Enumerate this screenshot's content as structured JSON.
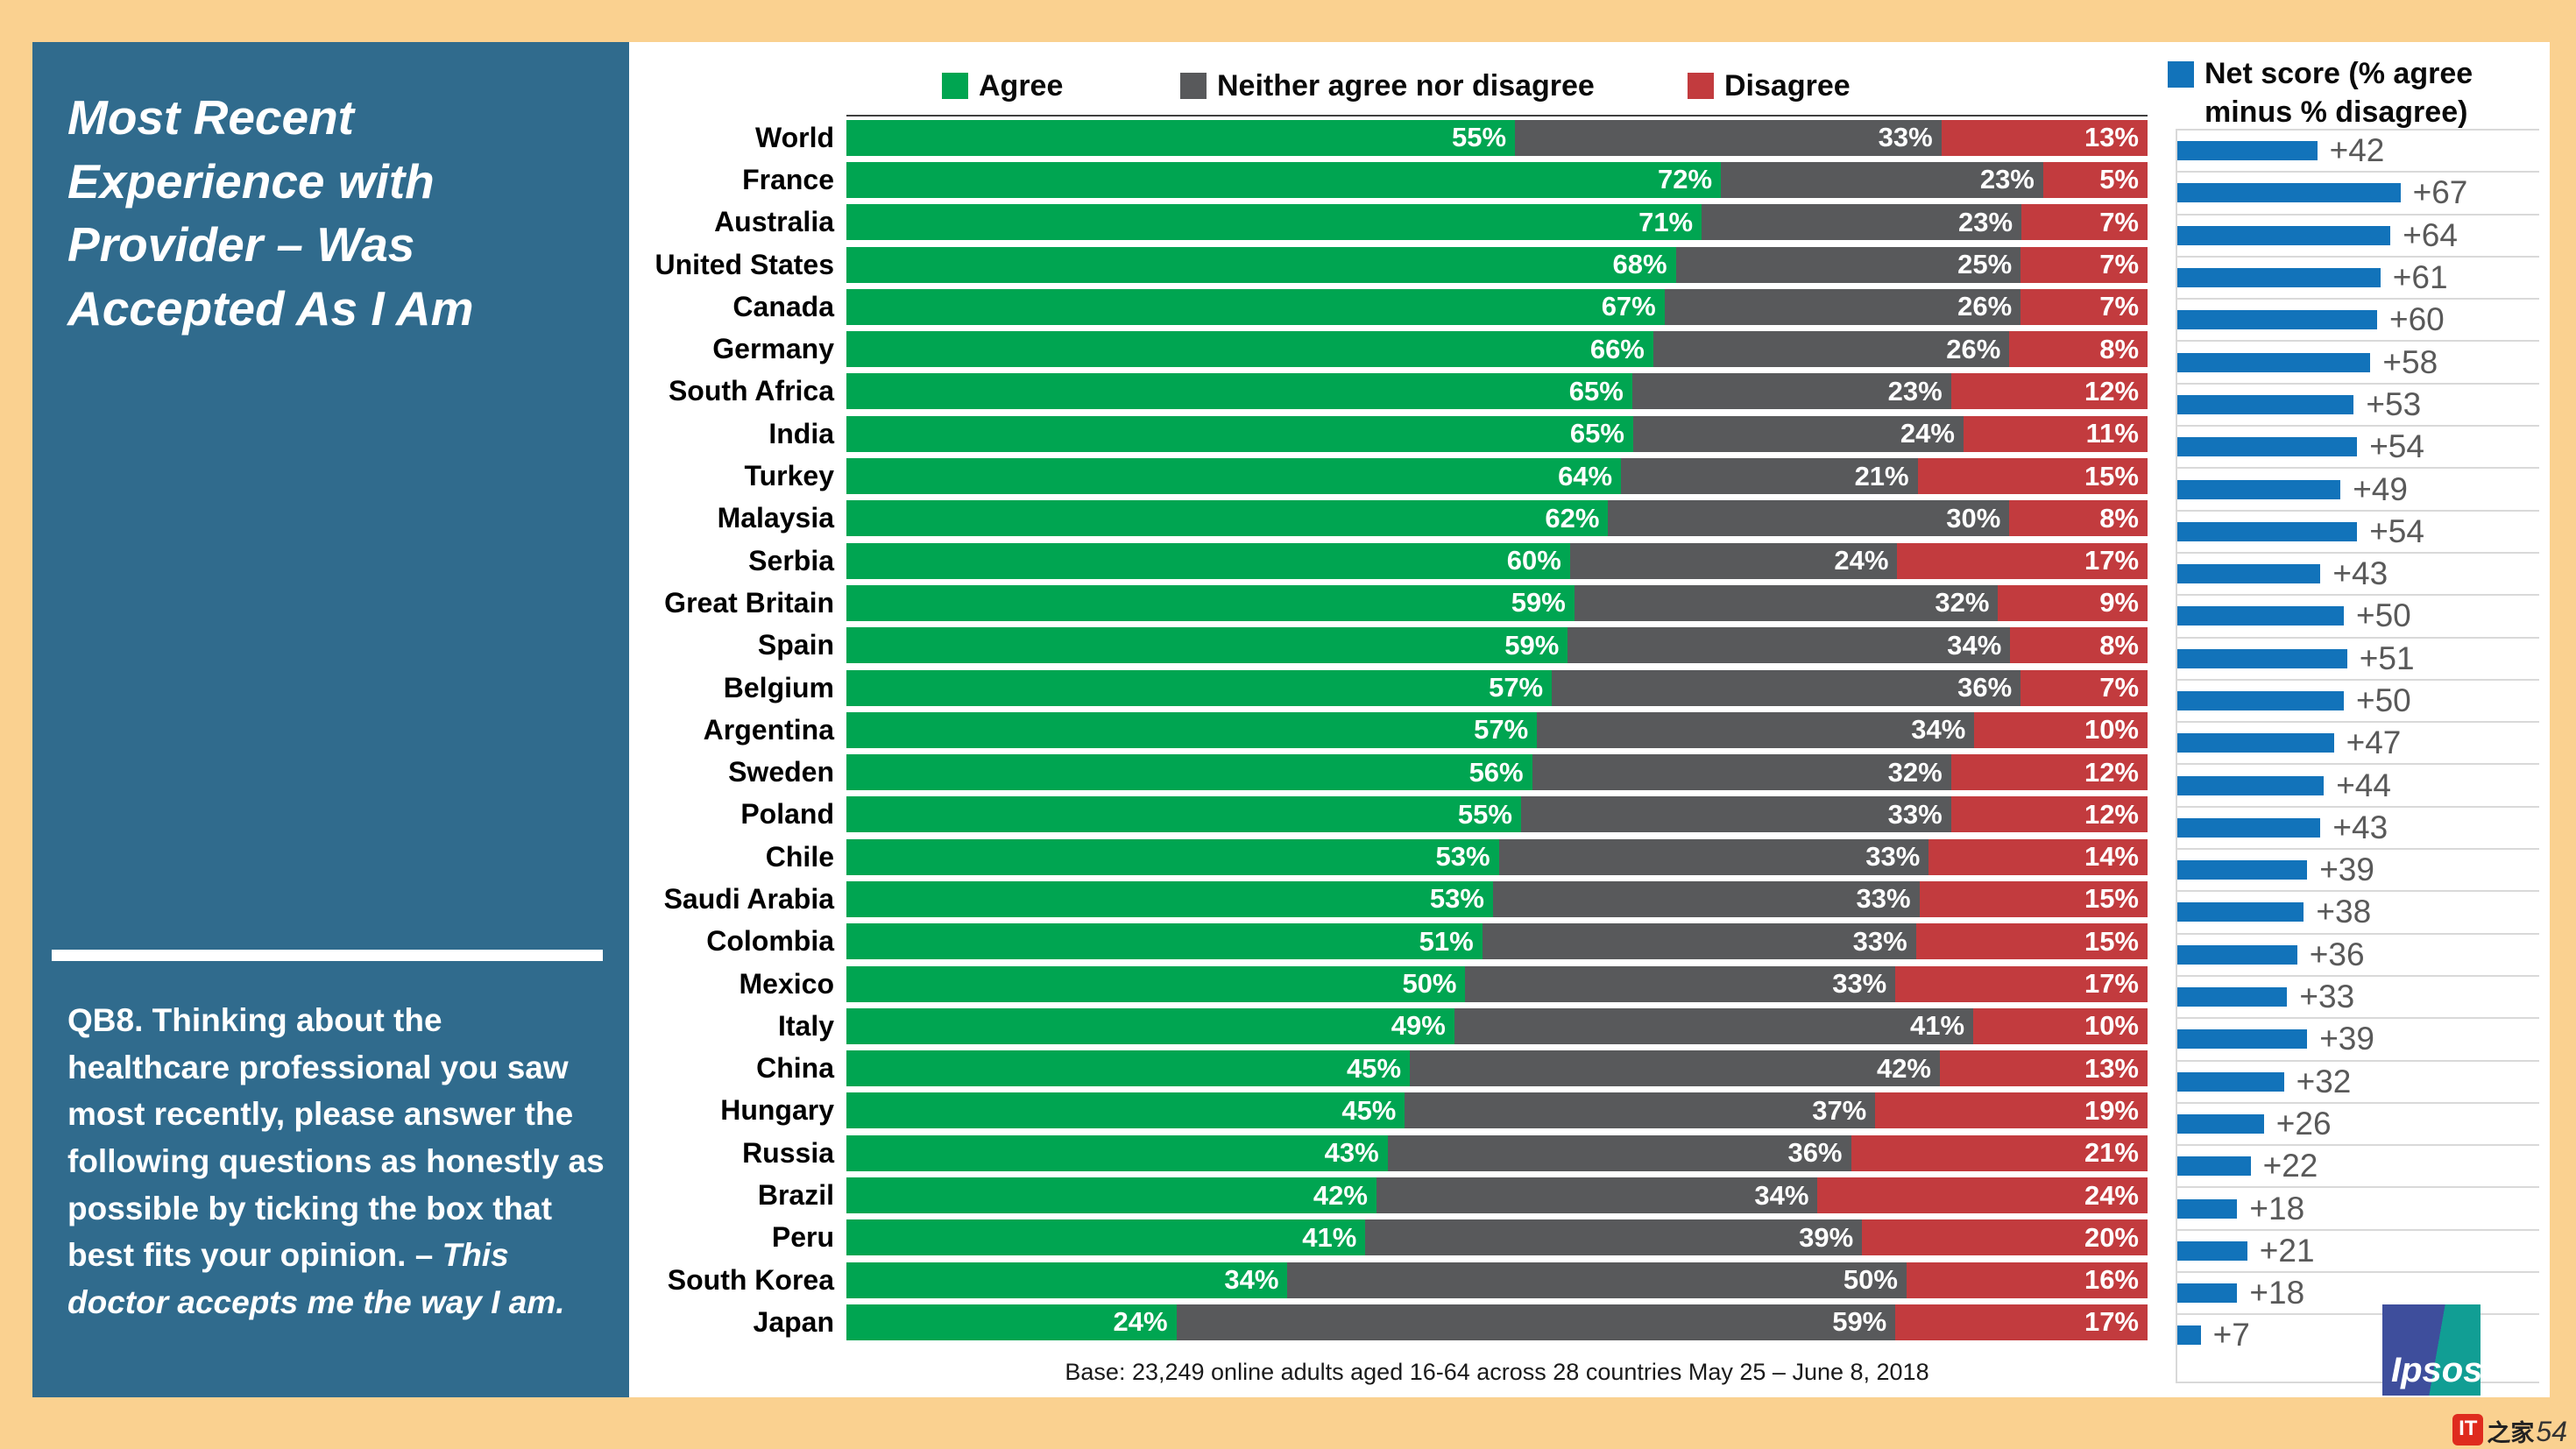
{
  "colors": {
    "page_background": "#FAD190",
    "panel_background": "#306B8D",
    "agree": "#00A551",
    "neither": "#58595B",
    "disagree": "#C23B3E",
    "net": "#1273BA",
    "gridline": "#D9D9D9"
  },
  "panel": {
    "title": "Most Recent  Experience with Provider – Was Accepted As I Am",
    "question_prefix": "QB8. Thinking about the healthcare professional you saw most recently, please answer the following questions as honestly as possible by ticking the box that best fits your opinion. –",
    "question_emphasis": "This doctor accepts me the way I am."
  },
  "legend": {
    "items": [
      {
        "label": "Agree",
        "color": "#00A551"
      },
      {
        "label": "Neither agree nor disagree",
        "color": "#58595B"
      },
      {
        "label": "Disagree",
        "color": "#C23B3E"
      }
    ],
    "net_label": "Net score (% agree minus % disagree)",
    "net_color": "#1273BA"
  },
  "chart_data": {
    "type": "bar",
    "orientation": "horizontal",
    "stacked": true,
    "value_suffix": "%",
    "title": "Most Recent Experience with Provider – Was Accepted As I Am",
    "categories": [
      "World",
      "France",
      "Australia",
      "United States",
      "Canada",
      "Germany",
      "South Africa",
      "India",
      "Turkey",
      "Malaysia",
      "Serbia",
      "Great Britain",
      "Spain",
      "Belgium",
      "Argentina",
      "Sweden",
      "Poland",
      "Chile",
      "Saudi Arabia",
      "Colombia",
      "Mexico",
      "Italy",
      "China",
      "Hungary",
      "Russia",
      "Brazil",
      "Peru",
      "South Korea",
      "Japan"
    ],
    "series": [
      {
        "name": "Agree",
        "color": "#00A551",
        "values": [
          55,
          72,
          71,
          68,
          67,
          66,
          65,
          65,
          64,
          62,
          60,
          59,
          59,
          57,
          57,
          56,
          55,
          53,
          53,
          51,
          50,
          49,
          45,
          45,
          43,
          42,
          41,
          34,
          24
        ]
      },
      {
        "name": "Neither agree nor disagree",
        "color": "#58595B",
        "values": [
          33,
          23,
          23,
          25,
          26,
          26,
          23,
          24,
          21,
          30,
          24,
          32,
          34,
          36,
          34,
          32,
          33,
          33,
          33,
          33,
          33,
          41,
          42,
          37,
          36,
          34,
          39,
          50,
          59
        ]
      },
      {
        "name": "Disagree",
        "color": "#C23B3E",
        "values": [
          13,
          5,
          7,
          7,
          7,
          8,
          12,
          11,
          15,
          8,
          17,
          9,
          8,
          7,
          10,
          12,
          12,
          14,
          15,
          15,
          17,
          10,
          13,
          19,
          21,
          24,
          20,
          16,
          17
        ]
      }
    ],
    "net_scores": {
      "name": "Net score (% agree minus % disagree)",
      "color": "#1273BA",
      "prefix": "+",
      "values": [
        42,
        67,
        64,
        61,
        60,
        58,
        53,
        54,
        49,
        54,
        43,
        50,
        51,
        50,
        47,
        44,
        43,
        39,
        38,
        36,
        33,
        39,
        32,
        26,
        22,
        18,
        21,
        18,
        7
      ]
    },
    "legend_position": "top",
    "grid": "net-panel-horizontal-only"
  },
  "footer": {
    "base": "Base: 23,249 online adults aged 16-64 across 28 countries  May 25 – June 8, 2018"
  },
  "branding": {
    "logo_text": "Ipsos"
  },
  "watermark": {
    "badge": "IT",
    "text": "之家",
    "number": "54"
  }
}
